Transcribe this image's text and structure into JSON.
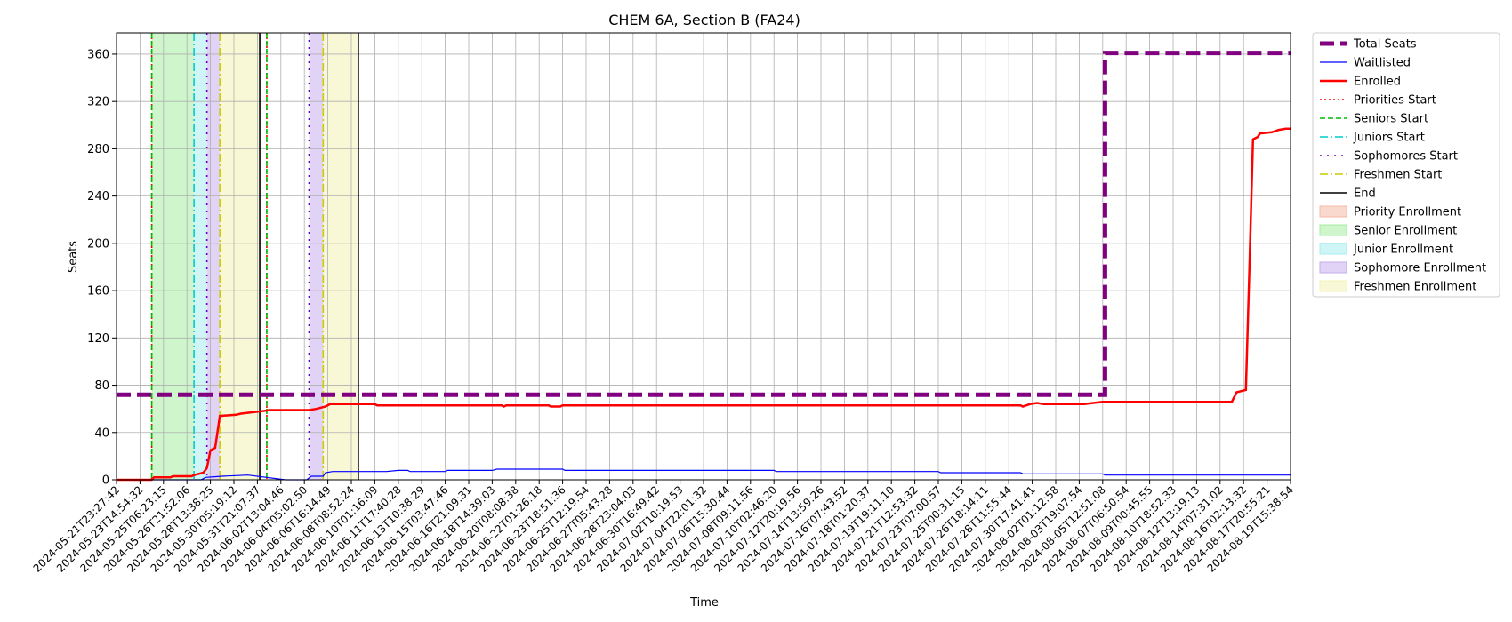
{
  "chart_data": {
    "type": "line",
    "title": "CHEM 6A, Section B (FA24)",
    "xlabel": "Time",
    "ylabel": "Seats",
    "ylim": [
      0,
      378
    ],
    "yticks": [
      0,
      40,
      80,
      120,
      160,
      200,
      240,
      280,
      320,
      360
    ],
    "grid": true,
    "legend_position": "outside right, top",
    "xtick_labels": [
      "2024-05-21T23:27:42",
      "2024-05-23T14:54:32",
      "2024-05-25T06:23:15",
      "2024-05-26T21:52:06",
      "2024-05-28T13:38:25",
      "2024-05-30T05:19:12",
      "2024-05-31T21:07:37",
      "2024-06-02T13:04:46",
      "2024-06-04T05:02:50",
      "2024-06-06T16:14:49",
      "2024-06-08T08:52:24",
      "2024-06-10T01:16:09",
      "2024-06-11T17:40:28",
      "2024-06-13T10:38:29",
      "2024-06-15T03:47:46",
      "2024-06-16T21:09:31",
      "2024-06-18T14:39:03",
      "2024-06-20T08:08:38",
      "2024-06-22T01:26:18",
      "2024-06-23T18:51:36",
      "2024-06-25T12:19:54",
      "2024-06-27T05:43:28",
      "2024-06-28T23:04:03",
      "2024-06-30T16:49:42",
      "2024-07-02T10:19:53",
      "2024-07-04T22:01:32",
      "2024-07-06T15:30:44",
      "2024-07-08T09:11:56",
      "2024-07-10T02:46:20",
      "2024-07-12T20:19:56",
      "2024-07-14T13:59:26",
      "2024-07-16T07:43:52",
      "2024-07-18T01:20:37",
      "2024-07-19T19:11:10",
      "2024-07-21T12:53:32",
      "2024-07-23T07:00:57",
      "2024-07-25T00:31:15",
      "2024-07-26T18:14:11",
      "2024-07-28T11:55:44",
      "2024-07-30T17:41:41",
      "2024-08-02T01:12:58",
      "2024-08-03T19:07:54",
      "2024-08-05T12:51:08",
      "2024-08-07T06:50:54",
      "2024-08-09T00:45:55",
      "2024-08-10T18:52:33",
      "2024-08-12T13:19:13",
      "2024-08-14T07:31:02",
      "2024-08-16T02:13:32",
      "2024-08-17T20:55:21",
      "2024-08-19T15:38:54"
    ],
    "series": [
      {
        "name": "Total Seats",
        "color": "#800080",
        "style": "dashed-thick",
        "points": [
          [
            0,
            72
          ],
          [
            42.1,
            72
          ],
          [
            42.1,
            361
          ],
          [
            50,
            361
          ]
        ]
      },
      {
        "name": "Waitlisted",
        "color": "#0000ff",
        "style": "solid-thin",
        "points": [
          [
            0,
            0
          ],
          [
            3.6,
            0
          ],
          [
            3.8,
            2
          ],
          [
            4.5,
            3
          ],
          [
            5.6,
            4
          ],
          [
            7.2,
            0
          ],
          [
            8.1,
            0
          ],
          [
            8.3,
            3
          ],
          [
            8.8,
            3
          ],
          [
            8.9,
            6
          ],
          [
            9.2,
            7
          ],
          [
            9.7,
            7
          ],
          [
            10.5,
            7
          ],
          [
            11.5,
            7
          ],
          [
            12.0,
            8
          ],
          [
            12.4,
            8
          ],
          [
            12.5,
            7
          ],
          [
            14.0,
            7
          ],
          [
            14.1,
            8
          ],
          [
            16.0,
            8
          ],
          [
            16.2,
            9
          ],
          [
            19.0,
            9
          ],
          [
            19.1,
            8
          ],
          [
            28.0,
            8
          ],
          [
            28.1,
            7
          ],
          [
            35.0,
            7
          ],
          [
            35.1,
            6
          ],
          [
            38.5,
            6
          ],
          [
            38.6,
            5
          ],
          [
            42.0,
            5
          ],
          [
            42.1,
            4
          ],
          [
            50,
            4
          ]
        ]
      },
      {
        "name": "Enrolled",
        "color": "#ff0000",
        "style": "solid-thick",
        "points": [
          [
            0,
            0
          ],
          [
            1.5,
            0
          ],
          [
            1.6,
            2
          ],
          [
            2.3,
            2
          ],
          [
            2.4,
            3
          ],
          [
            3.2,
            3
          ],
          [
            3.3,
            4
          ],
          [
            3.7,
            6
          ],
          [
            3.85,
            10
          ],
          [
            4.0,
            25
          ],
          [
            4.2,
            27
          ],
          [
            4.4,
            54
          ],
          [
            5.1,
            55
          ],
          [
            5.3,
            56
          ],
          [
            5.7,
            57
          ],
          [
            6.2,
            58
          ],
          [
            6.5,
            59
          ],
          [
            8.2,
            59
          ],
          [
            8.5,
            60
          ],
          [
            8.9,
            62
          ],
          [
            9.1,
            64
          ],
          [
            9.5,
            64
          ],
          [
            11.0,
            64
          ],
          [
            11.1,
            63
          ],
          [
            16.4,
            63
          ],
          [
            16.5,
            62
          ],
          [
            16.6,
            63
          ],
          [
            18.4,
            63
          ],
          [
            18.5,
            62
          ],
          [
            18.9,
            62
          ],
          [
            19.0,
            63
          ],
          [
            38.5,
            63
          ],
          [
            38.6,
            62
          ],
          [
            38.9,
            64
          ],
          [
            39.2,
            65
          ],
          [
            39.5,
            64
          ],
          [
            41.2,
            64
          ],
          [
            41.6,
            65
          ],
          [
            42.0,
            66
          ],
          [
            47.5,
            66
          ],
          [
            47.6,
            70
          ],
          [
            47.7,
            74
          ],
          [
            47.9,
            75
          ],
          [
            48.1,
            76
          ],
          [
            48.25,
            180
          ],
          [
            48.4,
            288
          ],
          [
            48.6,
            290
          ],
          [
            48.7,
            293
          ],
          [
            49.2,
            294
          ],
          [
            49.5,
            296
          ],
          [
            49.8,
            297
          ],
          [
            50,
            297
          ]
        ]
      },
      {
        "name": "Priorities Start",
        "color": "#ff0000",
        "style": "dotted",
        "x": [
          1.5,
          6.4
        ]
      },
      {
        "name": "Seniors Start",
        "color": "#00bb00",
        "style": "dashed",
        "x": [
          1.5,
          6.4
        ]
      },
      {
        "name": "Juniors Start",
        "color": "#00cccc",
        "style": "dashdot",
        "x": [
          3.3
        ]
      },
      {
        "name": "Sophomores Start",
        "color": "#6600cc",
        "style": "dashdot-dense",
        "x": [
          3.85,
          8.2
        ]
      },
      {
        "name": "Freshmen Start",
        "color": "#cccc00",
        "style": "dashdot",
        "x": [
          4.4,
          8.8
        ]
      },
      {
        "name": "End",
        "color": "#000000",
        "style": "solid",
        "x": [
          6.1,
          10.3
        ]
      }
    ],
    "spans": [
      {
        "name": "Priority Enrollment",
        "color": "#f4b9a4",
        "ranges": []
      },
      {
        "name": "Senior Enrollment",
        "color": "#a6eda0",
        "ranges": [
          [
            1.5,
            3.3
          ]
        ]
      },
      {
        "name": "Junior Enrollment",
        "color": "#a8ecef",
        "ranges": [
          [
            3.3,
            3.85
          ]
        ]
      },
      {
        "name": "Sophomore Enrollment",
        "color": "#c6aeef",
        "ranges": [
          [
            3.85,
            4.4
          ],
          [
            8.2,
            8.8
          ]
        ]
      },
      {
        "name": "Freshmen Enrollment",
        "color": "#f2f3b4",
        "ranges": [
          [
            4.4,
            6.1
          ],
          [
            8.8,
            10.3
          ]
        ]
      }
    ]
  }
}
